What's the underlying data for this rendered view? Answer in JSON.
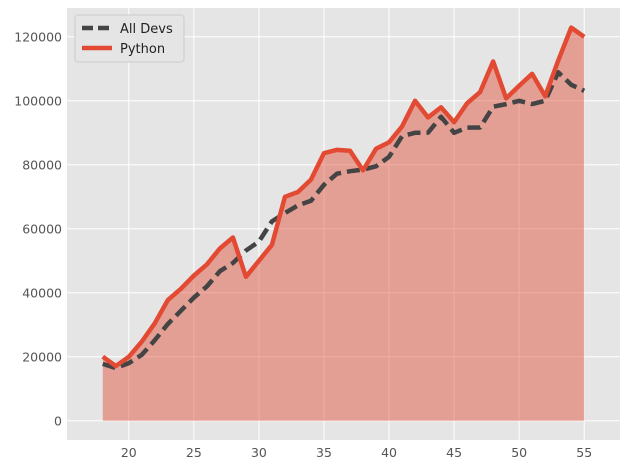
{
  "chart_data": {
    "type": "line",
    "title": "",
    "xlabel": "",
    "ylabel": "",
    "x": [
      18,
      19,
      20,
      21,
      22,
      23,
      24,
      25,
      26,
      27,
      28,
      29,
      30,
      31,
      32,
      33,
      34,
      35,
      36,
      37,
      38,
      39,
      40,
      41,
      42,
      43,
      44,
      45,
      46,
      47,
      48,
      49,
      50,
      51,
      52,
      53,
      54,
      55
    ],
    "series": [
      {
        "name": "All Devs",
        "style": "dashed",
        "color": "#444444",
        "values": [
          17784,
          16500,
          18012,
          20628,
          25206,
          30252,
          34368,
          38496,
          42000,
          46752,
          49320,
          53200,
          56000,
          62316,
          64928,
          67317,
          68748,
          73752,
          77232,
          78000,
          78508,
          79536,
          82488,
          88935,
          90000,
          90056,
          95000,
          90000,
          91633,
          91660,
          98150,
          98964,
          100000,
          98988,
          100000,
          108923,
          105000,
          103117
        ]
      },
      {
        "name": "Python",
        "style": "solid",
        "color": "#e24a33",
        "values": [
          20046,
          17100,
          20000,
          24744,
          30500,
          37732,
          41247,
          45372,
          48876,
          53850,
          57287,
          45000,
          50000,
          55000,
          70000,
          71496,
          75370,
          83640,
          84666,
          84392,
          78254,
          85000,
          87038,
          91991,
          100000,
          94796,
          97962,
          93302,
          99240,
          102736,
          112285,
          100771,
          104708,
          108423,
          101407,
          112542,
          122870,
          120000
        ]
      }
    ],
    "fill_under": {
      "series": "Python",
      "color": "#e24a33",
      "alpha": 0.45
    },
    "xlim": [
      15.25,
      57.75
    ],
    "ylim": [
      -6000,
      129000
    ],
    "xticks": [
      20,
      25,
      30,
      35,
      40,
      45,
      50,
      55
    ],
    "yticks": [
      0,
      20000,
      40000,
      60000,
      80000,
      100000,
      120000
    ],
    "grid": true,
    "legend": "top-left",
    "colors": {
      "background": "#e5e5e5",
      "grid": "#ffffff",
      "tick_label": "#555555"
    }
  }
}
